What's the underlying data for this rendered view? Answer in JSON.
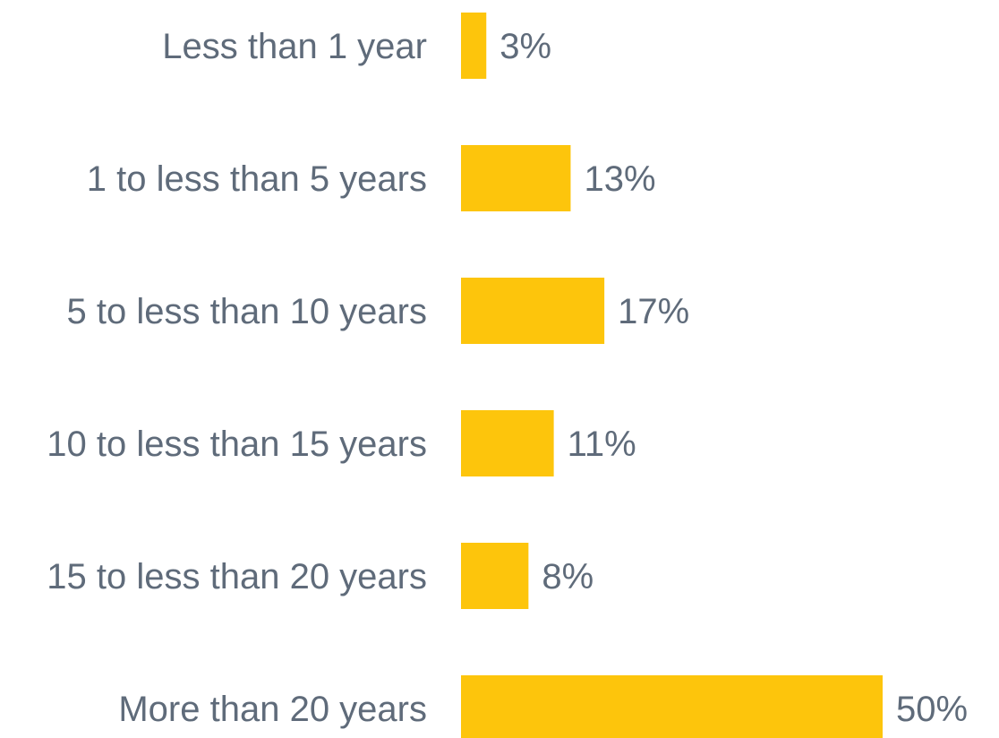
{
  "chart_data": {
    "type": "bar",
    "orientation": "horizontal",
    "categories": [
      "Less than 1 year",
      "1 to less than 5 years",
      "5 to less than 10 years",
      "10 to less than 15 years",
      "15 to less than 20 years",
      "More than 20 years"
    ],
    "values": [
      3,
      13,
      17,
      11,
      8,
      50
    ],
    "value_labels": [
      "3%",
      "13%",
      "17%",
      "11%",
      "8%",
      "50%"
    ],
    "unit": "%",
    "xlim": [
      0,
      50
    ],
    "grid": false,
    "legend": "none",
    "bar_color": "#fdc50c",
    "text_color": "#5f6b7a"
  }
}
